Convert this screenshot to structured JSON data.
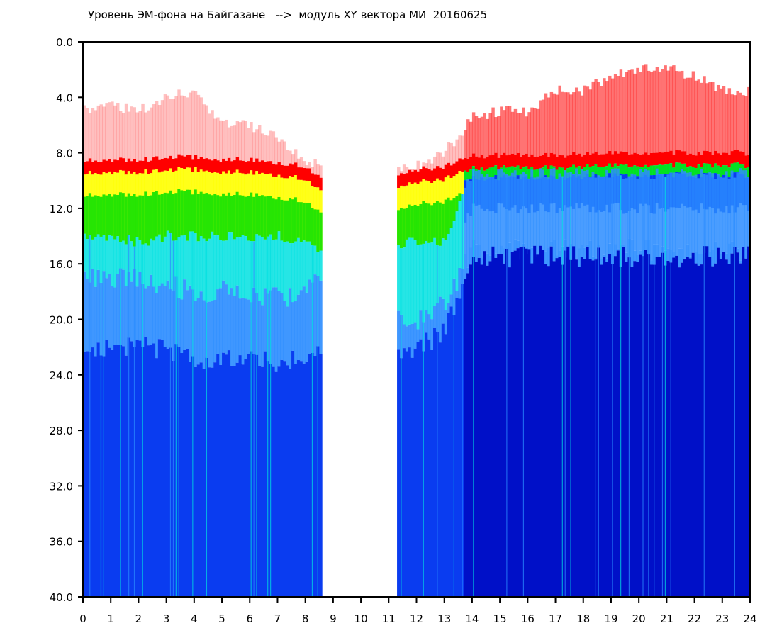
{
  "chart_data": {
    "type": "heatmap",
    "title": "Уровень ЭМ-фона на Байгазане   -->  модуль XY вектора МИ  20160625",
    "xlabel": "",
    "ylabel": "",
    "xlim": [
      0,
      24
    ],
    "ylim": [
      0,
      40
    ],
    "y_inverted": true,
    "x_ticks": [
      "0",
      "1",
      "2",
      "3",
      "4",
      "5",
      "6",
      "7",
      "8",
      "9",
      "10",
      "11",
      "12",
      "13",
      "14",
      "15",
      "16",
      "17",
      "18",
      "19",
      "20",
      "21",
      "22",
      "23",
      "24"
    ],
    "y_ticks": [
      "0.0",
      "4.0",
      "8.0",
      "12.0",
      "16.0",
      "20.0",
      "24.0",
      "28.0",
      "32.0",
      "36.0",
      "40.0"
    ],
    "no_data_interval": [
      8.6,
      11.3
    ],
    "colorscale": [
      "#ff0000",
      "#ffff00",
      "#00e000",
      "#00e0e0",
      "#2a8cff",
      "#0a3cf0",
      "#0010c8"
    ],
    "profile_hours": [
      0,
      1,
      2,
      3,
      4,
      5,
      6,
      7,
      8,
      8.6,
      11.3,
      12,
      13,
      14,
      15,
      16,
      17,
      18,
      19,
      20,
      21,
      22,
      23,
      24
    ],
    "sparse_red_top": [
      5,
      4.5,
      5,
      4,
      3.5,
      6,
      6,
      7,
      8.5,
      9,
      9,
      9,
      8,
      5.5,
      5,
      5,
      3.5,
      3.5,
      2.5,
      2,
      1.8,
      2.5,
      3.5,
      3.5
    ],
    "dense_red_top": [
      8.5,
      8.5,
      8.5,
      8.3,
      8.3,
      8.5,
      8.5,
      8.7,
      9,
      10,
      9.5,
      9.2,
      9,
      8.2,
      8.2,
      8.2,
      8.2,
      8.1,
      8,
      8,
      8,
      8,
      8,
      8
    ],
    "yellow_green_bottom": [
      14,
      14,
      14.5,
      14,
      14,
      14,
      14,
      14,
      14.5,
      15,
      14.5,
      14.5,
      14.5,
      9.5,
      9.5,
      9.5,
      9.5,
      9.5,
      9.5,
      9.5,
      9.5,
      9.5,
      9.5,
      9.5
    ],
    "cyan_bottom": [
      17,
      17,
      17,
      17.5,
      18,
      18,
      18,
      18.5,
      18,
      17,
      20,
      20,
      19,
      15,
      15,
      15,
      15,
      15,
      15,
      15,
      15,
      15,
      15,
      15
    ],
    "light_blue_bottom": [
      22,
      22,
      22,
      22,
      23,
      23,
      23,
      23,
      23,
      22,
      22,
      22,
      21,
      15.5,
      15.5,
      15.5,
      15.5,
      15.5,
      15.5,
      15.5,
      15.5,
      15.5,
      15.5,
      15.5
    ]
  }
}
